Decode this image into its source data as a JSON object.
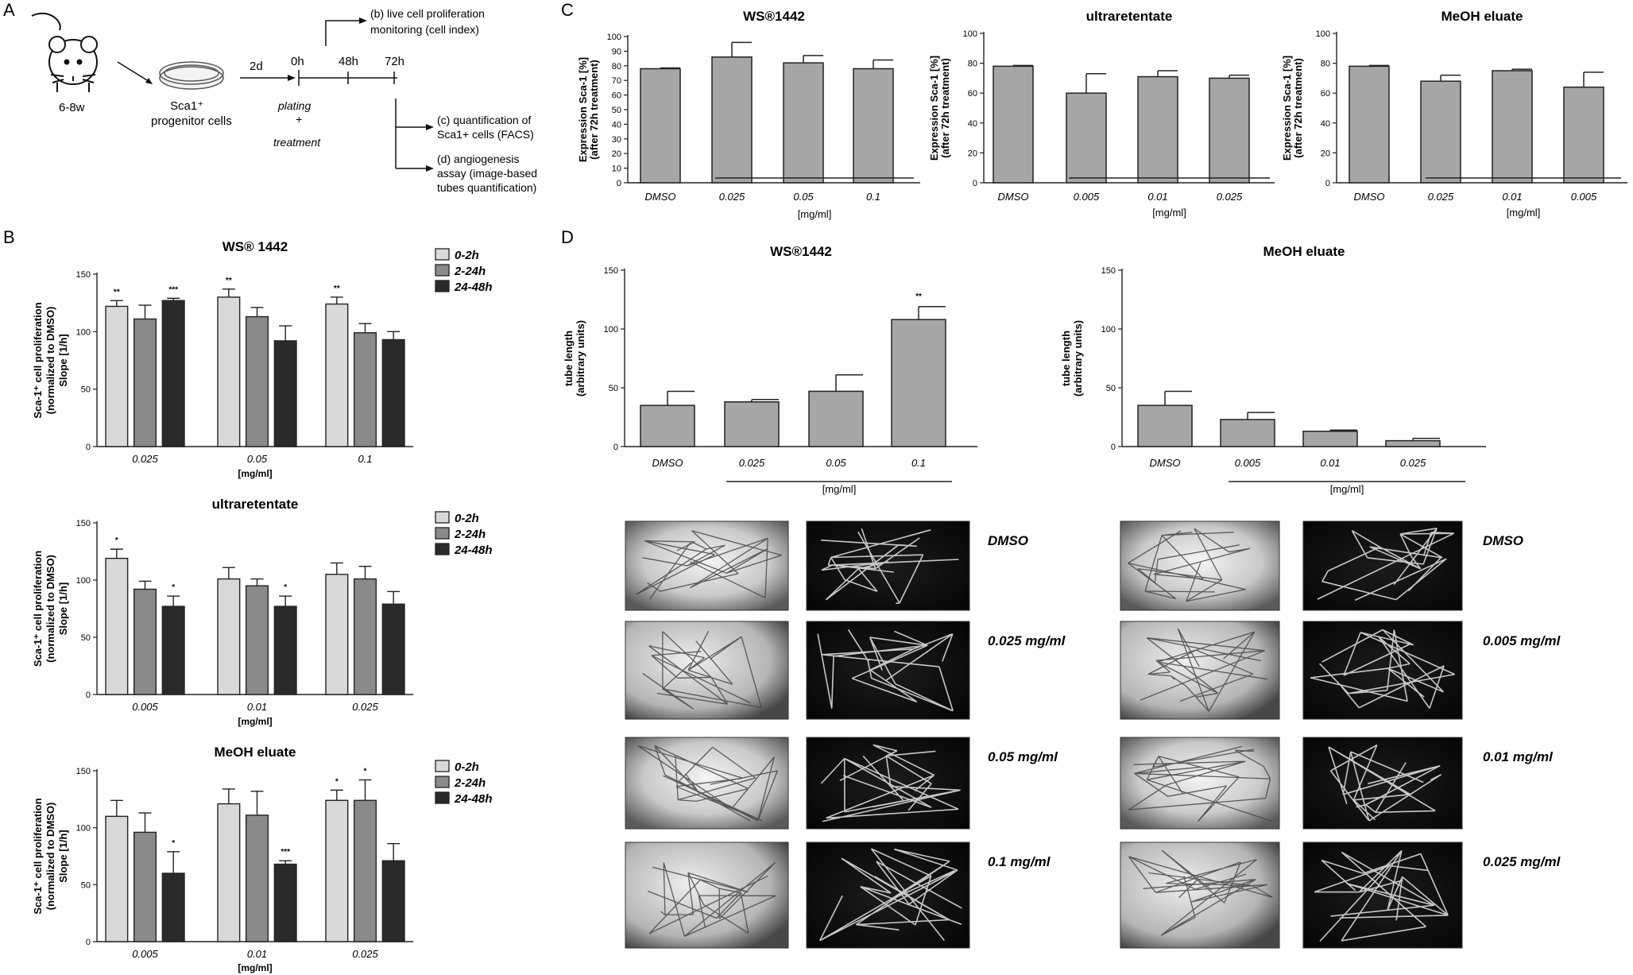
{
  "figure": {
    "panel_letters": [
      "A",
      "B",
      "C",
      "D"
    ],
    "schematic": {
      "mouse_age": "6-8w",
      "cells_line1": "Sca1⁺",
      "cells_line2": "progenitor cells",
      "days": "2d",
      "times": [
        "0h",
        "48h",
        "72h"
      ],
      "plating": [
        "plating",
        "+",
        "treatment"
      ],
      "steps": [
        [
          "(b) live cell proliferation",
          "monitoring (cell index)"
        ],
        [
          "(c) quantification of",
          "Sca1+ cells (FACS)"
        ],
        [
          "(d) angiogenesis",
          "assay (image-based",
          "tubes quantification)"
        ]
      ]
    },
    "micro_labels_ws": [
      "DMSO",
      "0.025 mg/ml",
      "0.05 mg/ml",
      "0.1 mg/ml"
    ],
    "micro_labels_meoh": [
      "DMSO",
      "0.005 mg/ml",
      "0.01 mg/ml",
      "0.025 mg/ml"
    ]
  },
  "chart_data": [
    {
      "panel": "B",
      "type": "bar",
      "title": "WS® 1442",
      "ylabel": [
        "Sca-1⁺ cell proliferation",
        "(normalized to DMSO)",
        "Slope [1/h]"
      ],
      "xlabel": "[mg/ml]",
      "ylim": [
        0,
        150
      ],
      "yticks": [
        0,
        50,
        100,
        150
      ],
      "categories": [
        "0.025",
        "0.05",
        "0.1"
      ],
      "legend": [
        "0-2h",
        "2-24h",
        "24-48h"
      ],
      "series": [
        {
          "name": "0-2h",
          "values": [
            122,
            130,
            124
          ],
          "errors": [
            5,
            7,
            6
          ],
          "sig": [
            "**",
            "**",
            "**"
          ]
        },
        {
          "name": "2-24h",
          "values": [
            111,
            113,
            99
          ],
          "errors": [
            12,
            8,
            8
          ],
          "sig": [
            "",
            "",
            ""
          ]
        },
        {
          "name": "24-48h",
          "values": [
            127,
            92,
            93
          ],
          "errors": [
            2,
            13,
            7
          ],
          "sig": [
            "***",
            "",
            ""
          ]
        }
      ]
    },
    {
      "panel": "B",
      "type": "bar",
      "title": "ultraretentate",
      "ylabel": [
        "Sca-1⁺ cell proliferation",
        "(normalized to DMSO)",
        "Slope [1/h]"
      ],
      "xlabel": "[mg/ml]",
      "ylim": [
        0,
        150
      ],
      "yticks": [
        0,
        50,
        100,
        150
      ],
      "categories": [
        "0.005",
        "0.01",
        "0.025"
      ],
      "legend": [
        "0-2h",
        "2-24h",
        "24-48h"
      ],
      "series": [
        {
          "name": "0-2h",
          "values": [
            119,
            101,
            105
          ],
          "errors": [
            8,
            10,
            10
          ],
          "sig": [
            "*",
            "",
            ""
          ]
        },
        {
          "name": "2-24h",
          "values": [
            92,
            95,
            101
          ],
          "errors": [
            7,
            6,
            11
          ],
          "sig": [
            "",
            "",
            ""
          ]
        },
        {
          "name": "24-48h",
          "values": [
            77,
            77,
            79
          ],
          "errors": [
            9,
            9,
            11
          ],
          "sig": [
            "*",
            "*",
            ""
          ]
        }
      ]
    },
    {
      "panel": "B",
      "type": "bar",
      "title": "MeOH eluate",
      "ylabel": [
        "Sca-1⁺ cell proliferation",
        "(normalized to DMSO)",
        "Slope [1/h]"
      ],
      "xlabel": "[mg/ml]",
      "ylim": [
        0,
        150
      ],
      "yticks": [
        0,
        50,
        100,
        150
      ],
      "categories": [
        "0.005",
        "0.01",
        "0.025"
      ],
      "legend": [
        "0-2h",
        "2-24h",
        "24-48h"
      ],
      "series": [
        {
          "name": "0-2h",
          "values": [
            110,
            121,
            124
          ],
          "errors": [
            14,
            13,
            9
          ],
          "sig": [
            "",
            "",
            "*"
          ]
        },
        {
          "name": "2-24h",
          "values": [
            96,
            111,
            124
          ],
          "errors": [
            17,
            21,
            18
          ],
          "sig": [
            "",
            "",
            "*"
          ]
        },
        {
          "name": "24-48h",
          "values": [
            60,
            68,
            71
          ],
          "errors": [
            19,
            3,
            15
          ],
          "sig": [
            "*",
            "***",
            ""
          ]
        }
      ]
    },
    {
      "panel": "C",
      "type": "bar",
      "title": "WS®1442",
      "ylabel": [
        "Expression Sca-1 [%]",
        "(after 72h treatment)"
      ],
      "xlabel": "[mg/ml]",
      "ylim": [
        0,
        100
      ],
      "yticks": [
        0,
        10,
        20,
        30,
        40,
        50,
        60,
        70,
        80,
        90,
        100
      ],
      "categories": [
        "DMSO",
        "0.025",
        "0.05",
        "0.1"
      ],
      "values": [
        78,
        86,
        82,
        78
      ],
      "errors": [
        0.5,
        10,
        5,
        6
      ]
    },
    {
      "panel": "C",
      "type": "bar",
      "title": "ultraretentate",
      "ylabel": [
        "Expression Sca-1 [%]",
        "(after 72h treatment)"
      ],
      "xlabel": "[mg/ml]",
      "ylim": [
        0,
        100
      ],
      "yticks": [
        0,
        20,
        40,
        60,
        80,
        100
      ],
      "categories": [
        "DMSO",
        "0.005",
        "0.01",
        "0.025"
      ],
      "values": [
        78,
        60,
        71,
        70
      ],
      "errors": [
        0.5,
        13,
        4,
        2
      ]
    },
    {
      "panel": "C",
      "type": "bar",
      "title": "MeOH eluate",
      "ylabel": [
        "Expression Sca-1 [%]",
        "(after 72h treatment)"
      ],
      "xlabel": "[mg/ml]",
      "ylim": [
        0,
        100
      ],
      "yticks": [
        0,
        20,
        40,
        60,
        80,
        100
      ],
      "categories": [
        "DMSO",
        "0.025",
        "0.01",
        "0.005"
      ],
      "values": [
        78,
        68,
        75,
        64
      ],
      "errors": [
        0.5,
        4,
        1,
        10
      ]
    },
    {
      "panel": "D",
      "type": "bar",
      "title": "WS®1442",
      "ylabel": [
        "tube length",
        "(arbitrary units)"
      ],
      "xlabel": "[mg/ml]",
      "ylim": [
        0,
        150
      ],
      "yticks": [
        0,
        50,
        100,
        150
      ],
      "categories": [
        "DMSO",
        "0.025",
        "0.05",
        "0.1"
      ],
      "values": [
        35,
        38,
        47,
        108
      ],
      "errors": [
        12,
        2,
        14,
        11
      ],
      "sig": [
        "",
        "",
        "",
        "**"
      ]
    },
    {
      "panel": "D",
      "type": "bar",
      "title": "MeOH eluate",
      "ylabel": [
        "tube length",
        "(arbitrary units)"
      ],
      "xlabel": "[mg/ml]",
      "ylim": [
        0,
        150
      ],
      "yticks": [
        0,
        50,
        100,
        150
      ],
      "categories": [
        "DMSO",
        "0.005",
        "0.01",
        "0.025"
      ],
      "values": [
        35,
        23,
        13,
        5
      ],
      "errors": [
        12,
        6,
        1,
        2
      ],
      "sig": [
        "",
        "",
        "",
        ""
      ]
    }
  ],
  "colors": {
    "series": [
      "#d9d9d9",
      "#8a8a8a",
      "#2a2a2a"
    ],
    "bar_single": "#a6a6a6",
    "axis": "#222222"
  }
}
